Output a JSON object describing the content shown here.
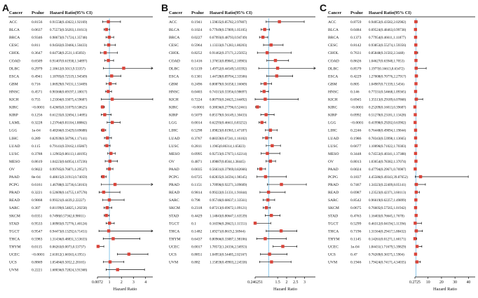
{
  "chart_data": [
    {
      "type": "forest",
      "panel_label": "A",
      "columns": [
        "Cancer",
        "Pvalue",
        "Hazard Ratio(95% CI)"
      ],
      "xlabel": "Hazard Ratio",
      "xticks": [
        "0.0072",
        "1",
        "2",
        "3",
        "4"
      ],
      "xlim": [
        0.0072,
        4.6
      ],
      "reference_line": 1,
      "rows": [
        {
          "cancer": "ACC",
          "p": "0.8156",
          "ci": "0.91558(0.43622,1.92169)",
          "hr": 0.91558,
          "lo": 0.43622,
          "hi": 1.92169
        },
        {
          "cancer": "BLCA",
          "p": "0.0637",
          "ci": "0.75573(0.56203,1.01613)",
          "hr": 0.75573,
          "lo": 0.56203,
          "hi": 1.01613
        },
        {
          "cancer": "BRCA",
          "p": "0.9346",
          "ci": "0.98673(0.71724,1.35748)",
          "hr": 0.98673,
          "lo": 0.71724,
          "hi": 1.35748
        },
        {
          "cancer": "CESC",
          "p": "0.811",
          "ci": "0.94582(0.59466,1.50433)",
          "hr": 0.94582,
          "lo": 0.59466,
          "hi": 1.50433
        },
        {
          "cancer": "CHOL",
          "p": "0.3647",
          "ci": "0.64758(0.2531,1.65692)",
          "hr": 0.64758,
          "lo": 0.2531,
          "hi": 1.65692
        },
        {
          "cancer": "COAD",
          "p": "0.6509",
          "ci": "0.91407(0.61938,1.34897)",
          "hr": 0.91407,
          "lo": 0.61938,
          "hi": 1.34897
        },
        {
          "cancer": "DLBC",
          "p": "0.2979",
          "ci": "2.18612(0.5013,9.53357)",
          "hr": 2.18612,
          "lo": 0.5013,
          "hi": 9.53357
        },
        {
          "cancer": "ESCA",
          "p": "0.4941",
          "ci": "1.18785(0.72519,1.94569)",
          "hr": 1.18785,
          "lo": 0.72519,
          "hi": 1.94569
        },
        {
          "cancer": "GBM",
          "p": "0.716",
          "ci": "1.06929(0.74531,1.53409)",
          "hr": 1.06929,
          "lo": 0.74531,
          "hi": 1.53409
        },
        {
          "cancer": "HNSC",
          "p": "0.4571",
          "ci": "0.90368(0.69197,1.18017)",
          "hr": 0.90368,
          "lo": 0.69197,
          "hi": 1.18017
        },
        {
          "cancer": "KICH",
          "p": "0.755",
          "ci": "1.23304(0.33075,4.59687)",
          "hr": 1.23304,
          "lo": 0.33075,
          "hi": 4.59687
        },
        {
          "cancer": "KIRC",
          "p": "<0.0001",
          "ci": "0.42685(0.31079,0.58625)",
          "hr": 0.42685,
          "lo": 0.31079,
          "hi": 0.58625
        },
        {
          "cancer": "KIRP",
          "p": "0.1256",
          "ci": "0.61235(0.32694,1.14695)",
          "hr": 0.61235,
          "lo": 0.32694,
          "hi": 1.14695
        },
        {
          "cancer": "LAML",
          "p": "0.3228",
          "ci": "1.23764(0.81104,1.88862)",
          "hr": 1.23764,
          "lo": 0.81104,
          "hi": 1.88862
        },
        {
          "cancer": "LGG",
          "p": "1e-04",
          "ci": "0.48266(0.33429,0.69688)",
          "hr": 0.48266,
          "lo": 0.33429,
          "hi": 0.69688
        },
        {
          "cancer": "LIHC",
          "p": "0.289",
          "ci": "0.82939(0.58796,1.17141)",
          "hr": 0.82939,
          "lo": 0.58796,
          "hi": 1.17141
        },
        {
          "cancer": "LUAD",
          "p": "0.115",
          "ci": "0.79141(0.59162,1.05867)",
          "hr": 0.79141,
          "lo": 0.59162,
          "hi": 1.05867
        },
        {
          "cancer": "LUSC",
          "p": "0.3788",
          "ci": "1.12965(0.86113,1.48195)",
          "hr": 1.12965,
          "lo": 0.86113,
          "hi": 1.48195
        },
        {
          "cancer": "MESO",
          "p": "0.8619",
          "ci": "1.04223(0.64954,1.67236)",
          "hr": 1.04223,
          "lo": 0.64954,
          "hi": 1.67236
        },
        {
          "cancer": "OV",
          "p": "0.9822",
          "ci": "0.99785(0.76871,1.29527)",
          "hr": 0.99785,
          "lo": 0.76871,
          "hi": 1.29527
        },
        {
          "cancer": "PAAD",
          "p": "8e-04",
          "ci": "0.48615(0.31913,0.74059)",
          "hr": 0.48615,
          "lo": 0.31913,
          "hi": 0.74059
        },
        {
          "cancer": "PCPG",
          "p": "0.6161",
          "ci": "1.46788(0.32736,6.58163)",
          "hr": 1.46788,
          "lo": 0.32736,
          "hi": 6.58163
        },
        {
          "cancer": "PRAD",
          "p": "0.3221",
          "ci": "0.52609(0.14755,1.87578)",
          "hr": 0.52609,
          "lo": 0.14755,
          "hi": 1.87578
        },
        {
          "cancer": "READ",
          "p": "0.9868",
          "ci": "0.99321(0.4439,2.22227)",
          "hr": 0.99321,
          "lo": 0.4439,
          "hi": 2.22227
        },
        {
          "cancer": "SARC",
          "p": "0.307",
          "ci": "0.81199(0.54825,1.20258)",
          "hr": 0.81199,
          "lo": 0.54825,
          "hi": 1.20258
        },
        {
          "cancer": "SKCM",
          "p": "0.0351",
          "ci": "0.7498(0.57362,0.98011)",
          "hr": 0.7498,
          "lo": 0.57362,
          "hi": 0.98011
        },
        {
          "cancer": "STAD",
          "p": "0.9533",
          "ci": "1.00983(0.72776,1.40124)",
          "hr": 1.00983,
          "lo": 0.72776,
          "hi": 1.40124
        },
        {
          "cancer": "TGCT",
          "p": "0.9547",
          "ci": "0.94473(0.13292,6.71451)",
          "hr": 0.94473,
          "lo": 0.13292,
          "hi": 6.71451
        },
        {
          "cancer": "THCA",
          "p": "0.5983",
          "ci": "1.31436(0.48831,3.53633)",
          "hr": 1.31436,
          "lo": 0.48831,
          "hi": 3.53633
        },
        {
          "cancer": "THYM",
          "p": "0.0115",
          "ci": "0.06263(0.0073,0.53737)",
          "hr": 0.06263,
          "lo": 0.0073,
          "hi": 0.53737
        },
        {
          "cancer": "UCEC",
          "p": "<0.0001",
          "ci": "2.61812(1.66563,4.1951)",
          "hr": 2.61812,
          "lo": 1.66563,
          "hi": 4.1951
        },
        {
          "cancer": "UCS",
          "p": "0.8869",
          "ci": "1.05484(0.5052,2.20165)",
          "hr": 1.05484,
          "lo": 0.5052,
          "hi": 2.20165
        },
        {
          "cancer": "UVM",
          "p": "0.2221",
          "ci": "1.68036(0.72824,3.91368)",
          "hr": 1.68036,
          "lo": 0.72824,
          "hi": 3.91368
        }
      ]
    },
    {
      "type": "forest",
      "panel_label": "B",
      "columns": [
        "Cancer",
        "Pvalue",
        "Hazard Ratio(95% CI)"
      ],
      "xlabel": "Hazard Ratio",
      "xticks": [
        "0.246251",
        "1.5",
        "2",
        "2.5",
        "3"
      ],
      "xlim": [
        0.2462,
        3.6
      ],
      "reference_line": 1,
      "rows": [
        {
          "cancer": "ACC",
          "p": "0.1941",
          "ci": "1.59835(0.85782,2.97807)",
          "hr": 1.59835,
          "lo": 0.85782,
          "hi": 2.97807
        },
        {
          "cancer": "BLCA",
          "p": "0.1024",
          "ci": "0.77949(0.57809,1.05105)",
          "hr": 0.77949,
          "lo": 0.57809,
          "hi": 1.05105
        },
        {
          "cancer": "BRCA",
          "p": "0.0227",
          "ci": "0.67993(0.48793,0.94749)",
          "hr": 0.67993,
          "lo": 0.48793,
          "hi": 0.94749
        },
        {
          "cancer": "CESC",
          "p": "0.5964",
          "ci": "1.13333(0.71283,1.80203)",
          "hr": 1.13333,
          "lo": 0.71283,
          "hi": 1.80203
        },
        {
          "cancer": "CHOL",
          "p": "0.8252",
          "ci": "0.91462(0.37171,2.25055)",
          "hr": 0.91462,
          "lo": 0.37171,
          "hi": 2.25055
        },
        {
          "cancer": "COAD",
          "p": "0.1416",
          "ci": "1.37653(0.89845,2.10903)",
          "hr": 1.37653,
          "lo": 0.89845,
          "hi": 2.10903
        },
        {
          "cancer": "DLBC",
          "p": "0.5139",
          "ci": "1.49752(0.44549,5.03392)",
          "hr": 1.49752,
          "lo": 0.44549,
          "hi": 5.03392
        },
        {
          "cancer": "ESCA",
          "p": "0.1301",
          "ci": "1.44728(0.89704,2.33506)",
          "hr": 1.44728,
          "lo": 0.89704,
          "hi": 2.33506
        },
        {
          "cancer": "GBM",
          "p": "0.2496",
          "ci": "0.80879(0.56358,1.16069)",
          "hr": 0.80879,
          "lo": 0.56358,
          "hi": 1.16069
        },
        {
          "cancer": "HNSC",
          "p": "0.0403",
          "ci": "0.74315(0.55956,0.98697)",
          "hr": 0.74315,
          "lo": 0.55956,
          "hi": 0.98697
        },
        {
          "cancer": "KICH",
          "p": "0.7224",
          "ci": "0.80793(0.24625,2.64492)",
          "hr": 0.80793,
          "lo": 0.24625,
          "hi": 2.64492
        },
        {
          "cancer": "KIRC",
          "p": "<0.0001",
          "ci": "0.38036(0.27796,0.52461)",
          "hr": 0.38036,
          "lo": 0.27796,
          "hi": 0.52461
        },
        {
          "cancer": "KIRP",
          "p": "0.5079",
          "ci": "0.85579(0.56149,1.30433)",
          "hr": 0.85579,
          "lo": 0.56149,
          "hi": 1.30433
        },
        {
          "cancer": "LGG",
          "p": "0.0014",
          "ci": "0.62293(0.46611,0.83252)",
          "hr": 0.62293,
          "lo": 0.46611,
          "hi": 0.83252
        },
        {
          "cancer": "LIHC",
          "p": "0.5298",
          "ci": "1.09823(0.81965,1.47187)",
          "hr": 1.09823,
          "lo": 0.81965,
          "hi": 1.47187
        },
        {
          "cancer": "LUAD",
          "p": "0.3767",
          "ci": "0.88359(0.67241,1.16102)",
          "hr": 0.88359,
          "lo": 0.67241,
          "hi": 1.16102
        },
        {
          "cancer": "LUSC",
          "p": "0.2811",
          "ci": "1.1965(0.86314,1.65823)",
          "hr": 1.1965,
          "lo": 0.86314,
          "hi": 1.65823
        },
        {
          "cancer": "MESO",
          "p": "0.0995",
          "ci": "0.92723(0.57673,1.62214)",
          "hr": 0.92723,
          "lo": 0.57673,
          "hi": 1.62214
        },
        {
          "cancer": "OV",
          "p": "0.4871",
          "ci": "1.09887(0.8564,1.38445)",
          "hr": 1.09887,
          "lo": 0.8564,
          "hi": 1.38445
        },
        {
          "cancer": "PAAD",
          "p": "0.0035",
          "ci": "0.56031(0.37969,0.82666)",
          "hr": 0.56031,
          "lo": 0.37969,
          "hi": 0.82666
        },
        {
          "cancer": "PCPG",
          "p": "0.6725",
          "ci": "0.82835(0.34594,1.98345)",
          "hr": 0.82835,
          "lo": 0.34594,
          "hi": 1.98345
        },
        {
          "cancer": "PRAD",
          "p": "0.1151",
          "ci": "1.70996(0.92271,3.09609)",
          "hr": 1.70996,
          "lo": 0.92271,
          "hi": 3.09609
        },
        {
          "cancer": "READ",
          "p": "0.9814",
          "ci": "0.99222(0.51331,1.91844)",
          "hr": 0.99222,
          "lo": 0.51331,
          "hi": 1.91844
        },
        {
          "cancer": "SARC",
          "p": "0.798",
          "ci": "0.95746(0.68637,1.33561)",
          "hr": 0.95746,
          "lo": 0.68637,
          "hi": 1.33561
        },
        {
          "cancer": "SKCM",
          "p": "0.2318",
          "ci": "0.87213(0.69672,1.09121)",
          "hr": 0.87213,
          "lo": 0.69672,
          "hi": 1.09121
        },
        {
          "cancer": "STAD",
          "p": "0.4429",
          "ci": "1.14843(0.80647,1.63539)",
          "hr": 1.14843,
          "lo": 0.80647,
          "hi": 1.63539
        },
        {
          "cancer": "TGCT",
          "p": "0.1",
          "ci": "0.16596(0.28623,1.11551)",
          "hr": 0.16596,
          "lo": 0.28623,
          "hi": 1.11551
        },
        {
          "cancer": "THCA",
          "p": "0.1482",
          "ci": "1.69271(0.8619,2.56944)",
          "hr": 1.69271,
          "lo": 0.8619,
          "hi": 2.56944
        },
        {
          "cancer": "THYM",
          "p": "0.6437",
          "ci": "0.80966(0.33087,1.98106)",
          "hr": 0.80966,
          "lo": 0.33087,
          "hi": 1.98106
        },
        {
          "cancer": "UCEC",
          "p": "0.0017",
          "ci": "1.78572(1.24336,2.56953)",
          "hr": 1.78572,
          "lo": 1.24336,
          "hi": 2.56953
        },
        {
          "cancer": "UCS",
          "p": "0.8851",
          "ci": "1.04953(0.54485,2.02167)",
          "hr": 1.04953,
          "lo": 0.54485,
          "hi": 2.02167
        },
        {
          "cancer": "UVM",
          "p": "0.882",
          "ci": "1.15859(0.49903,2.24558)",
          "hr": 1.15859,
          "lo": 0.49903,
          "hi": 2.24558
        }
      ]
    },
    {
      "type": "forest",
      "panel_label": "C",
      "columns": [
        "Cancer",
        "Pvalue",
        "Hazard Ratio(95% CI)"
      ],
      "xlabel": "Hazard Ratio",
      "xticks": [
        "0.2725",
        "10",
        "20",
        "30",
        "40"
      ],
      "xlim": [
        0.2725,
        45
      ],
      "reference_line": 1,
      "rows": [
        {
          "cancer": "ACC",
          "p": "0.8759",
          "ci": "0.94053(0.43582,2.02982)",
          "hr": 0.94053,
          "lo": 0.43582,
          "hi": 2.02982
        },
        {
          "cancer": "BLCA",
          "p": "0.0484",
          "ci": "0.69524(0.48463,0.99738)",
          "hr": 0.69524,
          "lo": 0.48463,
          "hi": 0.99738
        },
        {
          "cancer": "BRCA",
          "p": "0.1373",
          "ci": "0.77954(0.46611,1.11877)",
          "hr": 0.77954,
          "lo": 0.46611,
          "hi": 1.11877
        },
        {
          "cancer": "CESC",
          "p": "0.8142",
          "ci": "0.93853(0.55274,1.59356)",
          "hr": 0.93853,
          "lo": 0.55274,
          "hi": 1.59356
        },
        {
          "cancer": "CHOL",
          "p": "0.7631",
          "ci": "0.85848(0.31502,2.3448)",
          "hr": 0.85848,
          "lo": 0.31502,
          "hi": 2.3448
        },
        {
          "cancer": "COAD",
          "p": "0.8626",
          "ci": "1.04627(0.63948,1.7053)",
          "hr": 1.04627,
          "lo": 0.63948,
          "hi": 1.7053
        },
        {
          "cancer": "DLBC",
          "p": "0.8579",
          "ci": "1.1977(0.16613,8.63472)",
          "hr": 1.1977,
          "lo": 0.16613,
          "hi": 8.63472
        },
        {
          "cancer": "ESCA",
          "p": "0.4229",
          "ci": "1.27008(0.70776,2.27917)",
          "hr": 1.27008,
          "lo": 0.70776,
          "hi": 2.27917
        },
        {
          "cancer": "GBM",
          "p": "0.805",
          "ci": "1.04987(0.71339,1.5456)",
          "hr": 1.04987,
          "lo": 0.71339,
          "hi": 1.5456
        },
        {
          "cancer": "HNSC",
          "p": "0.146",
          "ci": "0.77331(0.54668,1.09365)",
          "hr": 0.77331,
          "lo": 0.54668,
          "hi": 1.09365
        },
        {
          "cancer": "KICH",
          "p": "0.6945",
          "ci": "1.35513(0.29189,6.07868)",
          "hr": 1.35513,
          "lo": 0.29189,
          "hi": 6.07868
        },
        {
          "cancer": "KIRC",
          "p": "<0.0001",
          "ci": "0.25209(0.16013,0.39687)",
          "hr": 0.25209,
          "lo": 0.16013,
          "hi": 0.39687
        },
        {
          "cancer": "KIRP",
          "p": "0.0992",
          "ci": "0.51278(0.23181,1.13428)",
          "hr": 0.51278,
          "lo": 0.23181,
          "hi": 1.13428
        },
        {
          "cancer": "LGG",
          "p": "<0.0001",
          "ci": "0.41998(0.29202,0.63902)",
          "hr": 0.41998,
          "lo": 0.29202,
          "hi": 0.63902
        },
        {
          "cancer": "LIHC",
          "p": "0.2246",
          "ci": "0.76448(0.49094,1.19844)",
          "hr": 0.76448,
          "lo": 0.49094,
          "hi": 1.19844
        },
        {
          "cancer": "LUAD",
          "p": "0.1986",
          "ci": "0.78343(0.53998,1.13665)",
          "hr": 0.78343,
          "lo": 0.53998,
          "hi": 1.13665
        },
        {
          "cancer": "LUSC",
          "p": "0.6677",
          "ci": "1.10096(0.71022,1.70383)",
          "hr": 1.10096,
          "lo": 0.71022,
          "hi": 1.70383
        },
        {
          "cancer": "MESO",
          "p": "0.3448",
          "ci": "0.74553(0.40341,1.37388)",
          "hr": 0.74553,
          "lo": 0.40341,
          "hi": 1.37388
        },
        {
          "cancer": "OV",
          "p": "0.8013",
          "ci": "1.03654(0.78382,1.37074)",
          "hr": 1.03654,
          "lo": 0.78382,
          "hi": 1.37074
        },
        {
          "cancer": "PAAD",
          "p": "0.0024",
          "ci": "0.47794(0.29671,0.76987)",
          "hr": 0.47794,
          "lo": 0.29671,
          "hi": 0.76987
        },
        {
          "cancer": "PCPG",
          "p": "0.1837",
          "ci": "4.45586(0.49343,39.87652)",
          "hr": 4.45586,
          "lo": 0.49343,
          "hi": 39.87652
        },
        {
          "cancer": "PRAD",
          "p": "0.7467",
          "ci": "1.34323(0.22409,8.05141)",
          "hr": 1.34323,
          "lo": 0.22409,
          "hi": 8.05141
        },
        {
          "cancer": "READ",
          "p": "0.6987",
          "ci": "1.23523(0.42371,3.60113)",
          "hr": 1.23523,
          "lo": 0.42371,
          "hi": 3.60113
        },
        {
          "cancer": "SARC",
          "p": "0.8542",
          "ci": "0.96619(0.62257,1.49899)",
          "hr": 0.96619,
          "lo": 0.62257,
          "hi": 1.49899
        },
        {
          "cancer": "SKCM",
          "p": "0.0675",
          "ci": "0.76605(0.57565,1.01942)",
          "hr": 0.76605,
          "lo": 0.57565,
          "hi": 1.01942
        },
        {
          "cancer": "STAD",
          "p": "0.4763",
          "ci": "1.16403(0.76645,1.7678)",
          "hr": 1.16403,
          "lo": 0.76645,
          "hi": 1.7678
        },
        {
          "cancer": "TGCT",
          "p": "0.5299",
          "ci": "0.46312(0.04194,5.11394)",
          "hr": 0.46312,
          "lo": 0.04194,
          "hi": 5.11394
        },
        {
          "cancer": "THCA",
          "p": "0.7196",
          "ci": "1.31564(0.29417,5.88432)",
          "hr": 1.31564,
          "lo": 0.29417,
          "hi": 5.88432
        },
        {
          "cancer": "THYM",
          "p": "0.1145",
          "ci": "0.14261(0.01271,1.60171)",
          "hr": 0.14261,
          "lo": 0.01271,
          "hi": 1.60171
        },
        {
          "cancer": "UCEC",
          "p": "1e-04",
          "ci": "1.84431(1.71679,5.39829)",
          "hr": 1.84431,
          "lo": 1.71679,
          "hi": 5.39829
        },
        {
          "cancer": "UCS",
          "p": "0.47",
          "ci": "0.76269(0.36575,1.5904)",
          "hr": 0.76269,
          "lo": 0.36575,
          "hi": 1.5904
        },
        {
          "cancer": "UVM",
          "p": "0.1946",
          "ci": "1.79424(0.74171,4.34035)",
          "hr": 1.79424,
          "lo": 0.74171,
          "hi": 4.34035
        }
      ]
    }
  ]
}
